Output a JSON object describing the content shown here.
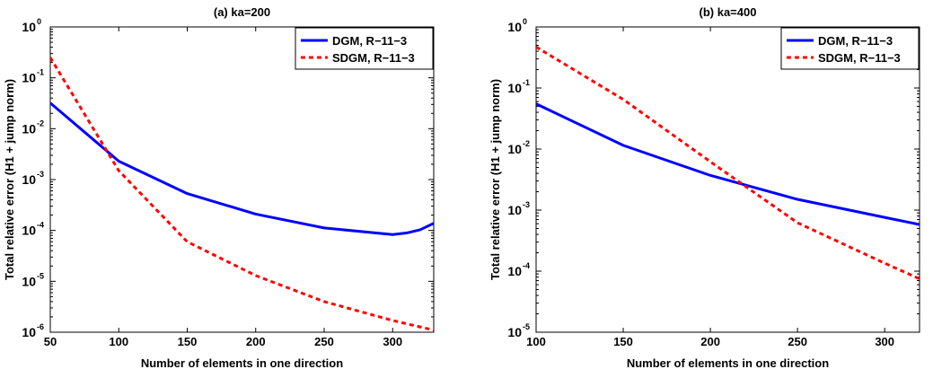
{
  "chart_data": [
    {
      "type": "line",
      "title": "(a) ka=200",
      "xlabel": "Number of elements in one direction",
      "ylabel": "Total relative error (H1 + jump norm)",
      "yscale": "log",
      "xlim": [
        50,
        330
      ],
      "ylim": [
        1e-06,
        1
      ],
      "xticks": [
        50,
        100,
        150,
        200,
        250,
        300
      ],
      "yticks": [
        {
          "value": 1e-06,
          "base": "10",
          "exp": "-6"
        },
        {
          "value": 1e-05,
          "base": "10",
          "exp": "-5"
        },
        {
          "value": 0.0001,
          "base": "10",
          "exp": "-4"
        },
        {
          "value": 0.001,
          "base": "10",
          "exp": "-3"
        },
        {
          "value": 0.01,
          "base": "10",
          "exp": "-2"
        },
        {
          "value": 0.1,
          "base": "10",
          "exp": "-1"
        },
        {
          "value": 1,
          "base": "10",
          "exp": "0"
        }
      ],
      "grid": false,
      "legend_position": "top-right",
      "series": [
        {
          "name": "DGM, R−11−3",
          "color": "#0000ff",
          "style": "solid",
          "x": [
            50,
            100,
            150,
            200,
            250,
            300,
            310,
            320,
            330
          ],
          "y": [
            0.032,
            0.0023,
            0.00053,
            0.00021,
            0.000112,
            8.3e-05,
            8.9e-05,
            0.000103,
            0.000138
          ]
        },
        {
          "name": "SDGM, R−11−3",
          "color": "#ff0000",
          "style": "dashed",
          "x": [
            50,
            100,
            150,
            200,
            250,
            300,
            330
          ],
          "y": [
            0.25,
            0.0015,
            6e-05,
            1.3e-05,
            4e-06,
            1.7e-06,
            1.1e-06
          ]
        }
      ]
    },
    {
      "type": "line",
      "title": "(b) ka=400",
      "xlabel": "Number of elements in one direction",
      "ylabel": "Total relative error (H1 + jump norm)",
      "yscale": "log",
      "xlim": [
        100,
        320
      ],
      "ylim": [
        1e-05,
        1
      ],
      "xticks": [
        100,
        150,
        200,
        250,
        300
      ],
      "yticks": [
        {
          "value": 1e-05,
          "base": "10",
          "exp": "-5"
        },
        {
          "value": 0.0001,
          "base": "10",
          "exp": "-4"
        },
        {
          "value": 0.001,
          "base": "10",
          "exp": "-3"
        },
        {
          "value": 0.01,
          "base": "10",
          "exp": "-2"
        },
        {
          "value": 0.1,
          "base": "10",
          "exp": "-1"
        },
        {
          "value": 1,
          "base": "10",
          "exp": "0"
        }
      ],
      "grid": false,
      "legend_position": "top-right",
      "series": [
        {
          "name": "DGM, R−11−3",
          "color": "#0000ff",
          "style": "solid",
          "x": [
            100,
            150,
            200,
            250,
            300,
            320
          ],
          "y": [
            0.055,
            0.0115,
            0.0037,
            0.0015,
            0.00076,
            0.00058
          ]
        },
        {
          "name": "SDGM, R−11−3",
          "color": "#ff0000",
          "style": "dashed",
          "x": [
            100,
            150,
            200,
            250,
            300,
            320
          ],
          "y": [
            0.47,
            0.065,
            0.0062,
            0.00062,
            0.000135,
            7.5e-05
          ]
        }
      ]
    }
  ]
}
